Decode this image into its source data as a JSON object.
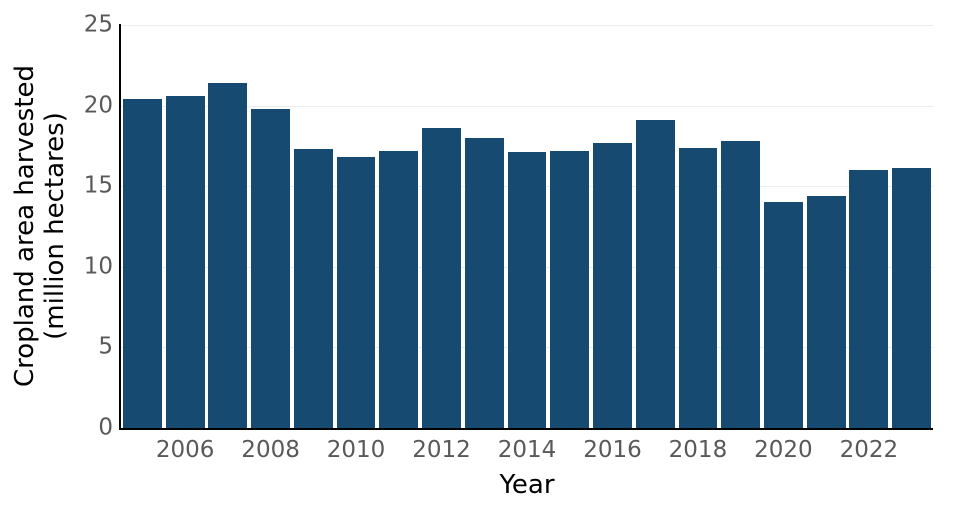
{
  "chart_data": {
    "type": "bar",
    "title": "",
    "xlabel": "Year",
    "ylabel": "Cropland area harvested (million hectares)",
    "ylabel_lines": [
      "Cropland area harvested",
      "(million hectares)"
    ],
    "categories": [
      2005,
      2006,
      2007,
      2008,
      2009,
      2010,
      2011,
      2012,
      2013,
      2014,
      2015,
      2016,
      2017,
      2018,
      2019,
      2020,
      2021,
      2022,
      2023
    ],
    "values": [
      20.4,
      20.6,
      21.4,
      19.8,
      17.3,
      16.8,
      17.2,
      18.6,
      18.0,
      17.1,
      17.2,
      17.7,
      19.1,
      17.4,
      17.8,
      14.0,
      14.4,
      16.0,
      16.1
    ],
    "ylim": [
      0,
      25
    ],
    "ytick_values": [
      0,
      5,
      10,
      15,
      20,
      25
    ],
    "ytick_labels": [
      "0",
      "5",
      "10",
      "15",
      "20",
      "25"
    ],
    "xtick_years": [
      "2006",
      "2008",
      "2010",
      "2012",
      "2014",
      "2016",
      "2018",
      "2020",
      "2022"
    ],
    "grid": "horizontal",
    "legend": "none",
    "colors": {
      "bar": "#164a70",
      "tick_label": "#595959",
      "axis_label": "#000000",
      "gridline": "#ececec",
      "spine": "#000000",
      "background": "#ffffff"
    }
  }
}
